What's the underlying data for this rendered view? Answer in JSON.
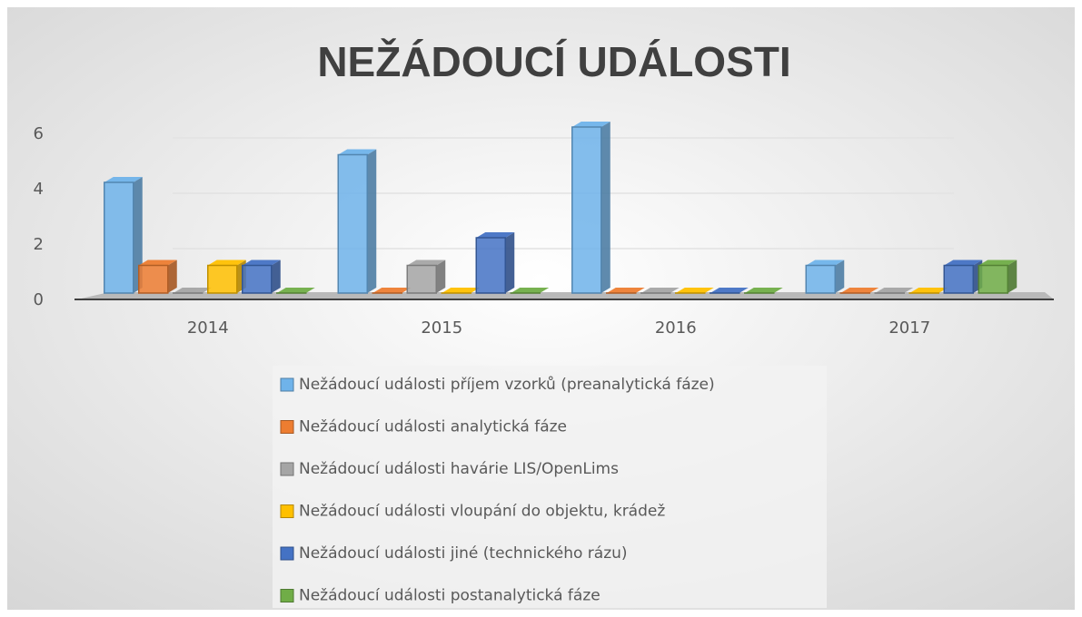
{
  "chart_data": {
    "type": "bar3d",
    "title": "NEŽÁDOUCÍ UDÁLOSTI",
    "categories": [
      "2014",
      "2015",
      "2016",
      "2017"
    ],
    "series": [
      {
        "name": "Nežádoucí události příjem vzorků (preanalytická fáze)",
        "color": "#6fb3ea",
        "values": [
          4,
          5,
          6,
          1
        ]
      },
      {
        "name": "Nežádoucí události analytická fáze",
        "color": "#ed7d31",
        "values": [
          1,
          0,
          0,
          0
        ]
      },
      {
        "name": "Nežádoucí události havárie LIS/OpenLims",
        "color": "#a5a5a5",
        "values": [
          0,
          1,
          0,
          0
        ]
      },
      {
        "name": "Nežádoucí události vloupání do objektu, krádež",
        "color": "#ffc000",
        "values": [
          1,
          0,
          0,
          0
        ]
      },
      {
        "name": "Nežádoucí události jiné (technického rázu)",
        "color": "#4472c4",
        "values": [
          1,
          2,
          0,
          1
        ]
      },
      {
        "name": "Nežádoucí události postanalytická fáze",
        "color": "#70ad47",
        "values": [
          0,
          0,
          0,
          1
        ]
      }
    ],
    "ylim": [
      0,
      6
    ],
    "yticks": [
      0,
      2,
      4,
      6
    ],
    "grid": true
  }
}
